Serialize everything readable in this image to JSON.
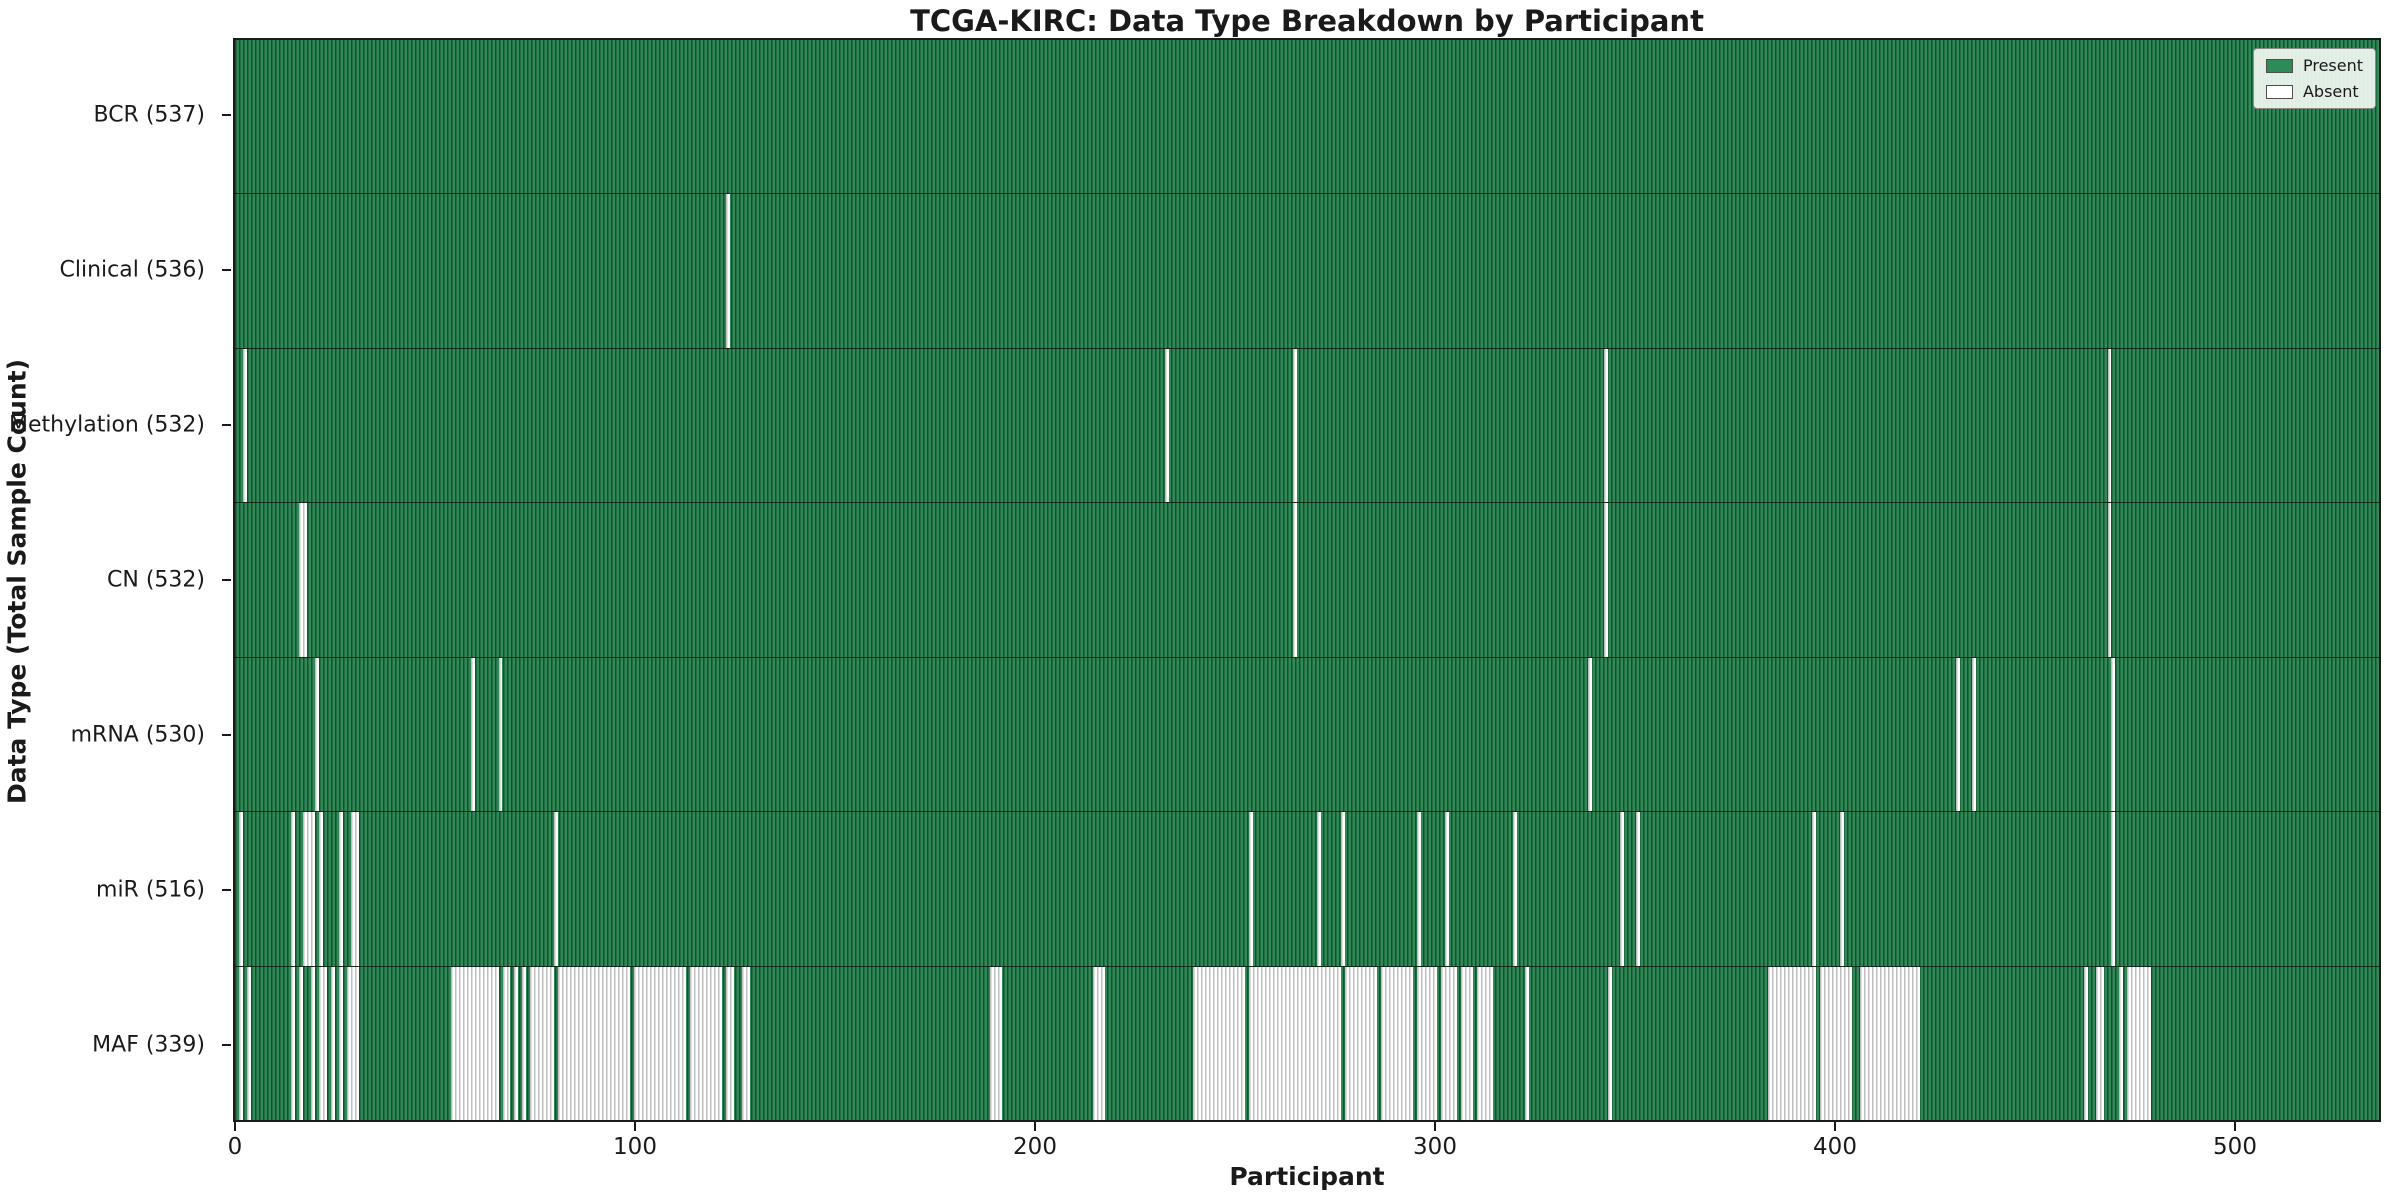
{
  "figure": {
    "title": "TCGA-KIRC: Data Type Breakdown by Participant",
    "xlabel": "Participant",
    "ylabel": "Data Type (Total Sample Count)"
  },
  "legend": {
    "items": [
      {
        "label": "Present",
        "color": "#2e8b57"
      },
      {
        "label": "Absent",
        "color": "#ffffff"
      }
    ]
  },
  "chart_data": {
    "type": "heatmap",
    "title": "TCGA-KIRC: Data Type Breakdown by Participant",
    "xlabel": "Participant",
    "ylabel": "Data Type (Total Sample Count)",
    "n_participants": 537,
    "x_axis": {
      "range": [
        -0.5,
        536.5
      ],
      "ticks": [
        0,
        100,
        200,
        300,
        400,
        500
      ]
    },
    "colors": {
      "present_fill": "#2e8b57",
      "absent_fill": "#ffffff",
      "bar_edge_on_green": "rgba(0,0,0,0.45)",
      "bar_edge_on_white": "rgba(0,0,0,0.25)",
      "axis": "#1a1a1a"
    },
    "legend_position": "upper right",
    "rows": [
      {
        "name": "BCR",
        "label": "BCR (537)",
        "present_count": 537,
        "absent_count": 0,
        "absent_ranges": []
      },
      {
        "name": "Clinical",
        "label": "Clinical (536)",
        "present_count": 536,
        "absent_count": 1,
        "absent_ranges": [
          [
            123,
            123
          ]
        ]
      },
      {
        "name": "Methylation",
        "label": "Methylation (532)",
        "present_count": 532,
        "absent_count": 5,
        "absent_ranges": [
          [
            2,
            2
          ],
          [
            233,
            233
          ],
          [
            265,
            265
          ],
          [
            343,
            343
          ],
          [
            469,
            469
          ]
        ]
      },
      {
        "name": "CN",
        "label": "CN (532)",
        "present_count": 532,
        "absent_count": 5,
        "absent_ranges": [
          [
            16,
            17
          ],
          [
            265,
            265
          ],
          [
            343,
            343
          ],
          [
            469,
            469
          ]
        ]
      },
      {
        "name": "mRNA",
        "label": "mRNA (530)",
        "present_count": 530,
        "absent_count": 7,
        "absent_ranges": [
          [
            20,
            20
          ],
          [
            59,
            59
          ],
          [
            66,
            66
          ],
          [
            339,
            339
          ],
          [
            431,
            431
          ],
          [
            435,
            435
          ],
          [
            470,
            470
          ]
        ]
      },
      {
        "name": "miR",
        "label": "miR (516)",
        "present_count": 516,
        "absent_count": 21,
        "absent_ranges": [
          [
            1,
            1
          ],
          [
            14,
            14
          ],
          [
            17,
            19
          ],
          [
            21,
            21
          ],
          [
            26,
            26
          ],
          [
            29,
            30
          ],
          [
            80,
            80
          ],
          [
            254,
            254
          ],
          [
            271,
            271
          ],
          [
            277,
            277
          ],
          [
            296,
            296
          ],
          [
            303,
            303
          ],
          [
            320,
            320
          ],
          [
            347,
            347
          ],
          [
            351,
            351
          ],
          [
            395,
            395
          ],
          [
            402,
            402
          ],
          [
            470,
            470
          ]
        ]
      },
      {
        "name": "MAF",
        "label": "MAF (339)",
        "present_count": 339,
        "absent_count": 198,
        "absent_ranges": [
          [
            1,
            1
          ],
          [
            3,
            3
          ],
          [
            14,
            14
          ],
          [
            16,
            16
          ],
          [
            19,
            19
          ],
          [
            21,
            22
          ],
          [
            24,
            24
          ],
          [
            26,
            26
          ],
          [
            28,
            30
          ],
          [
            54,
            65
          ],
          [
            67,
            68
          ],
          [
            70,
            70
          ],
          [
            72,
            72
          ],
          [
            74,
            79
          ],
          [
            81,
            98
          ],
          [
            100,
            112
          ],
          [
            114,
            121
          ],
          [
            123,
            124
          ],
          [
            127,
            128
          ],
          [
            189,
            191
          ],
          [
            215,
            217
          ],
          [
            240,
            252
          ],
          [
            254,
            276
          ],
          [
            278,
            285
          ],
          [
            287,
            294
          ],
          [
            296,
            300
          ],
          [
            302,
            305
          ],
          [
            307,
            309
          ],
          [
            311,
            314
          ],
          [
            323,
            323
          ],
          [
            344,
            344
          ],
          [
            384,
            395
          ],
          [
            397,
            404
          ],
          [
            407,
            421
          ],
          [
            463,
            463
          ],
          [
            466,
            467
          ],
          [
            472,
            472
          ],
          [
            474,
            479
          ]
        ]
      }
    ]
  }
}
